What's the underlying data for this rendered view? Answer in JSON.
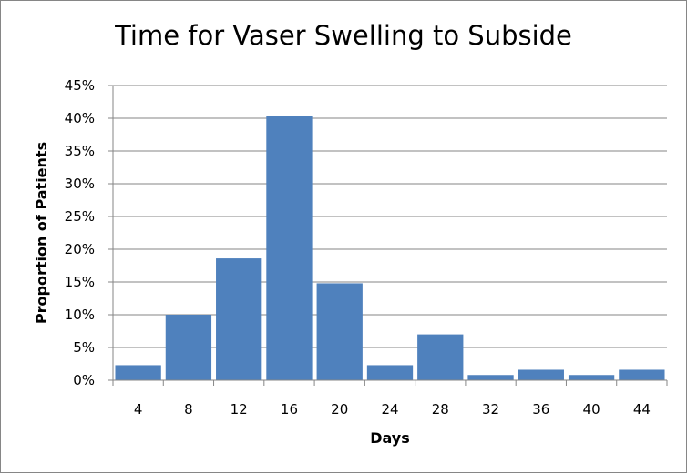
{
  "chart_data": {
    "type": "bar",
    "title": "Time for Vaser Swelling to Subside",
    "xlabel": "Days",
    "ylabel": "Proportion of Patients",
    "categories": [
      "4",
      "8",
      "12",
      "16",
      "20",
      "24",
      "28",
      "32",
      "36",
      "40",
      "44"
    ],
    "values": [
      2.3,
      10.0,
      18.6,
      40.3,
      14.8,
      2.3,
      7.0,
      0.8,
      1.6,
      0.8,
      1.6
    ],
    "ylim": [
      0,
      45
    ],
    "yticks": [
      "0%",
      "5%",
      "10%",
      "15%",
      "20%",
      "25%",
      "30%",
      "35%",
      "40%",
      "45%"
    ],
    "grid": true,
    "legend": "none",
    "bar_color": "#4f81bd",
    "grid_color": "#868686"
  }
}
